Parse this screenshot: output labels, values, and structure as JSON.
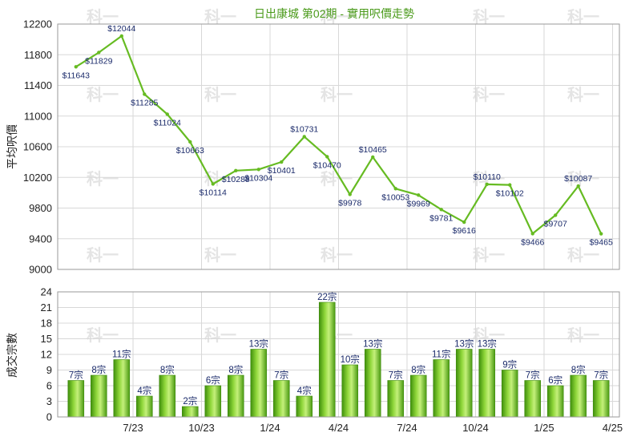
{
  "watermark": "科一",
  "chart_data": [
    {
      "type": "line",
      "title": "日出康城 第02期 - 實用呎價走勢",
      "ylabel": "平均呎價",
      "ylim": [
        9000,
        12200
      ],
      "yticks": [
        9000,
        9400,
        9800,
        10200,
        10600,
        11000,
        11400,
        11800,
        12200
      ],
      "grid": true,
      "color": "#66bb22",
      "label_prefix": "$",
      "values": [
        11643,
        11829,
        12044,
        11285,
        11024,
        10663,
        10114,
        10288,
        10304,
        10401,
        10731,
        10470,
        9978,
        10465,
        10053,
        9969,
        9781,
        9616,
        10110,
        10102,
        9466,
        9707,
        10087,
        9465
      ],
      "labels": [
        "$11643",
        "$11829",
        "$12044",
        "$11285",
        "$11024",
        "$10663",
        "$10114",
        "$10288",
        "$10304",
        "$10401",
        "$10731",
        "$10470",
        "$9978",
        "$10465",
        "$10053",
        "$9969",
        "$9781",
        "$9616",
        "$10110",
        "$10102",
        "$9466",
        "$9707",
        "$10087",
        "$9465"
      ]
    },
    {
      "type": "bar",
      "ylabel": "成交宗數",
      "ylim": [
        0,
        24
      ],
      "yticks": [
        0,
        3,
        6,
        9,
        12,
        15,
        18,
        21,
        24
      ],
      "grid": true,
      "color": "#66bb22",
      "x_tick_labels": [
        "7/23",
        "10/23",
        "1/24",
        "4/24",
        "7/24",
        "10/24",
        "1/25",
        "4/25"
      ],
      "values": [
        7,
        8,
        11,
        4,
        8,
        2,
        6,
        8,
        13,
        7,
        4,
        22,
        10,
        13,
        7,
        8,
        11,
        13,
        13,
        9,
        7,
        6,
        8,
        7
      ],
      "labels": [
        "7宗",
        "8宗",
        "11宗",
        "4宗",
        "8宗",
        "2宗",
        "6宗",
        "8宗",
        "13宗",
        "7宗",
        "4宗",
        "22宗",
        "10宗",
        "13宗",
        "7宗",
        "8宗",
        "11宗",
        "13宗",
        "13宗",
        "9宗",
        "7宗",
        "6宗",
        "8宗",
        "7宗"
      ]
    }
  ]
}
